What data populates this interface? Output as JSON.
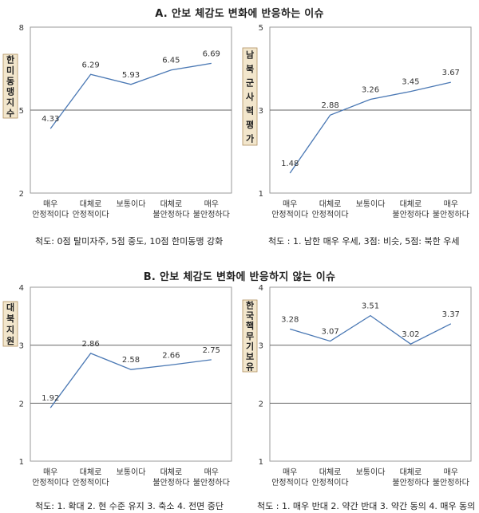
{
  "section_a_title": "A. 안보 체감도 변화에 반응하는 이슈",
  "section_b_title": "B. 안보 체감도 변화에 반응하지 않는 이슈",
  "colors": {
    "line": "#4a78b4",
    "grid": "#666666",
    "frame": "#9a9a9a",
    "label_bg": "#f2e6cc",
    "label_border": "#b09060"
  },
  "chart_data": [
    {
      "type": "line",
      "ylabel": "한미동맹지수",
      "ylim": [
        2,
        8
      ],
      "yticks": [
        2,
        5,
        8
      ],
      "categories": [
        "매우\n안정적이다",
        "대체로\n안정적이다",
        "보통이다",
        "대체로\n불안정하다",
        "매우\n불안정하다"
      ],
      "values": [
        4.33,
        6.29,
        5.93,
        6.45,
        6.69
      ],
      "value_labels": [
        "4.33",
        "6.29",
        "5.93",
        "6.45",
        "6.69"
      ],
      "scale_note": "척도: 0점 탈미자주, 5점 중도, 10점 한미동맹 강화"
    },
    {
      "type": "line",
      "ylabel": "남북군사력평가",
      "ylim": [
        1,
        5
      ],
      "yticks": [
        1,
        3,
        5
      ],
      "categories": [
        "매우\n안정적이다",
        "대체로\n안정적이다",
        "보통이다",
        "대체로\n불안정하다",
        "매우\n불안정하다"
      ],
      "values": [
        1.48,
        2.88,
        3.26,
        3.45,
        3.67
      ],
      "value_labels": [
        "1.48",
        "2.88",
        "3.26",
        "3.45",
        "3.67"
      ],
      "scale_note": "척도 : 1. 남한 매우 우세, 3점: 비슷, 5점: 북한 우세"
    },
    {
      "type": "line",
      "ylabel": "대북지원",
      "ylim": [
        1,
        4
      ],
      "yticks": [
        1,
        2,
        3,
        4
      ],
      "categories": [
        "매우\n안정적이다",
        "대체로\n안정적이다",
        "보통이다",
        "대체로\n불안정하다",
        "매우\n불안정하다"
      ],
      "values": [
        1.92,
        2.86,
        2.58,
        2.66,
        2.75
      ],
      "value_labels": [
        "1.92",
        "2.86",
        "2.58",
        "2.66",
        "2.75"
      ],
      "scale_note": "척도: 1. 확대 2. 현 수준 유지 3. 축소 4. 전면 중단"
    },
    {
      "type": "line",
      "ylabel": "한국핵무기보유",
      "ylim": [
        1,
        4
      ],
      "yticks": [
        1,
        2,
        3,
        4
      ],
      "categories": [
        "매우\n안정적이다",
        "대체로\n안정적이다",
        "보통이다",
        "대체로\n불안정하다",
        "매우\n불안정하다"
      ],
      "values": [
        3.28,
        3.07,
        3.51,
        3.02,
        3.37
      ],
      "value_labels": [
        "3.28",
        "3.07",
        "3.51",
        "3.02",
        "3.37"
      ],
      "scale_note": "척도 : 1. 매우 반대 2. 약간 반대 3. 약간 동의 4. 매우 동의"
    }
  ]
}
